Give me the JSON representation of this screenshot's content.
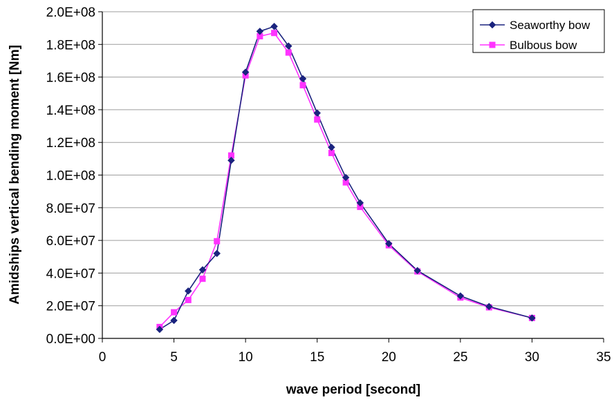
{
  "chart_data": {
    "type": "line",
    "title": "",
    "xlabel": "wave period [second]",
    "ylabel": "Amidships vertical bending moment [Nm]",
    "xlim": [
      0,
      35
    ],
    "ylim": [
      0,
      200000000
    ],
    "x_ticks": [
      0,
      5,
      10,
      15,
      20,
      25,
      30,
      35
    ],
    "x_tick_labels": [
      "0",
      "5",
      "10",
      "15",
      "20",
      "25",
      "30",
      "35"
    ],
    "y_ticks": [
      0,
      20000000,
      40000000,
      60000000,
      80000000,
      100000000,
      120000000,
      140000000,
      160000000,
      180000000,
      200000000
    ],
    "y_tick_labels": [
      "0.0E+00",
      "2.0E+07",
      "4.0E+07",
      "6.0E+07",
      "8.0E+07",
      "1.0E+08",
      "1.2E+08",
      "1.4E+08",
      "1.6E+08",
      "1.8E+08",
      "2.0E+08"
    ],
    "grid": "horizontal",
    "legend_position": "top-right",
    "series": [
      {
        "name": "Seaworthy bow",
        "color": "#1a237e",
        "marker": "diamond",
        "x": [
          4,
          5,
          6,
          7,
          8,
          9,
          10,
          11,
          12,
          13,
          14,
          15,
          16,
          17,
          18,
          20,
          22,
          25,
          27,
          30
        ],
        "y": [
          5500000,
          11000000,
          29000000,
          42000000,
          52000000,
          109000000,
          163000000,
          188000000,
          191000000,
          179000000,
          159000000,
          138000000,
          117000000,
          98500000,
          83000000,
          58000000,
          41500000,
          26000000,
          19500000,
          12500000
        ]
      },
      {
        "name": "Bulbous bow",
        "color": "#ff33ff",
        "marker": "square",
        "x": [
          4,
          5,
          6,
          7,
          8,
          9,
          10,
          11,
          12,
          13,
          14,
          15,
          16,
          17,
          18,
          20,
          22,
          25,
          27,
          30
        ],
        "y": [
          7000000,
          16000000,
          23500000,
          36500000,
          59500000,
          112000000,
          161000000,
          185000000,
          187000000,
          175000000,
          155000000,
          134000000,
          113500000,
          95500000,
          80500000,
          57000000,
          41000000,
          25000000,
          19000000,
          12500000
        ]
      }
    ]
  }
}
